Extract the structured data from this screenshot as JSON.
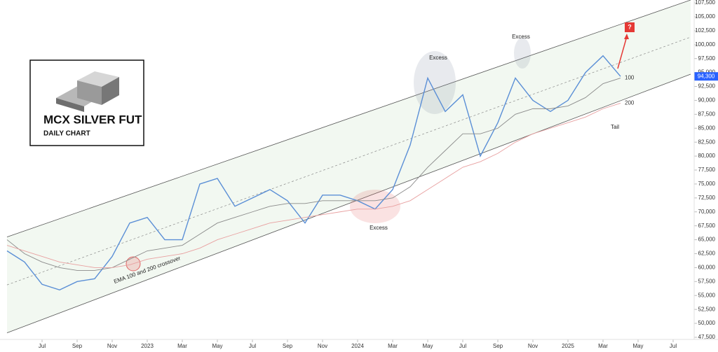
{
  "chart_data": {
    "type": "line",
    "title": "MCX SILVER FUT",
    "subtitle": "DAILY CHART",
    "x": [
      "2022-05",
      "2022-06",
      "2022-07",
      "2022-08",
      "2022-09",
      "2022-10",
      "2022-11",
      "2022-12",
      "2023-01",
      "2023-02",
      "2023-03",
      "2023-04",
      "2023-05",
      "2023-06",
      "2023-07",
      "2023-08",
      "2023-09",
      "2023-10",
      "2023-11",
      "2023-12",
      "2024-01",
      "2024-02",
      "2024-03",
      "2024-04",
      "2024-05",
      "2024-06",
      "2024-07",
      "2024-08",
      "2024-09",
      "2024-10",
      "2024-11",
      "2024-12",
      "2025-01",
      "2025-02",
      "2025-03",
      "2025-04"
    ],
    "series": [
      {
        "name": "MCX SILVER FUT",
        "color": "#5b8fd6",
        "values": [
          63000,
          61000,
          57000,
          56000,
          57500,
          58000,
          62000,
          68000,
          69000,
          65000,
          65000,
          75000,
          76000,
          71000,
          72500,
          74000,
          72000,
          68000,
          73000,
          73000,
          72000,
          70500,
          74000,
          82000,
          94000,
          88000,
          91000,
          80000,
          86000,
          94000,
          90000,
          88000,
          90000,
          95000,
          98000,
          94300
        ]
      },
      {
        "name": "100",
        "color": "#8a8a8a",
        "values": [
          65000,
          62500,
          61000,
          60000,
          59500,
          59500,
          60000,
          61500,
          63000,
          63500,
          64000,
          66000,
          68000,
          69000,
          70000,
          71000,
          71500,
          71500,
          72000,
          72000,
          72000,
          72000,
          72500,
          74500,
          78000,
          81000,
          84000,
          84000,
          85000,
          87500,
          88500,
          88500,
          89000,
          90500,
          93000,
          94000
        ]
      },
      {
        "name": "200",
        "color": "#e8a0a0",
        "values": [
          64000,
          63000,
          62000,
          61000,
          60500,
          60000,
          60000,
          60500,
          61500,
          62000,
          62500,
          63500,
          65000,
          66000,
          67000,
          68000,
          68500,
          69000,
          69500,
          70000,
          70500,
          70500,
          71000,
          72000,
          74000,
          76000,
          78000,
          79000,
          80500,
          82500,
          84000,
          85000,
          86000,
          87000,
          88500,
          89500
        ]
      }
    ],
    "channel": {
      "x": [
        "2022-05",
        "2025-08"
      ],
      "upper": [
        65500,
        108000
      ],
      "lower": [
        48300,
        94700
      ]
    },
    "last_price": {
      "value": 94300,
      "label": "94,300"
    },
    "annotations": [
      "Excess",
      "Excess",
      "Excess",
      "Tail",
      "EMA 100 and 200 crossover",
      "?"
    ],
    "xlim": [
      "2022-05",
      "2025-08"
    ],
    "xticks": [
      {
        "value": "2022-07",
        "label": "Jul"
      },
      {
        "value": "2022-09",
        "label": "Sep"
      },
      {
        "value": "2022-11",
        "label": "Nov"
      },
      {
        "value": "2023-01",
        "label": "2023"
      },
      {
        "value": "2023-03",
        "label": "Mar"
      },
      {
        "value": "2023-05",
        "label": "May"
      },
      {
        "value": "2023-07",
        "label": "Jul"
      },
      {
        "value": "2023-09",
        "label": "Sep"
      },
      {
        "value": "2023-11",
        "label": "Nov"
      },
      {
        "value": "2024-01",
        "label": "2024"
      },
      {
        "value": "2024-03",
        "label": "Mar"
      },
      {
        "value": "2024-05",
        "label": "May"
      },
      {
        "value": "2024-07",
        "label": "Jul"
      },
      {
        "value": "2024-09",
        "label": "Sep"
      },
      {
        "value": "2024-11",
        "label": "Nov"
      },
      {
        "value": "2025-01",
        "label": "2025"
      },
      {
        "value": "2025-03",
        "label": "Mar"
      },
      {
        "value": "2025-05",
        "label": "May"
      },
      {
        "value": "2025-07",
        "label": "Jul"
      }
    ],
    "ylim": [
      47500,
      107500
    ],
    "yticks": [
      {
        "value": 47500,
        "label": "47,500"
      },
      {
        "value": 50000,
        "label": "50,000"
      },
      {
        "value": 52500,
        "label": "52,500"
      },
      {
        "value": 55000,
        "label": "55,000"
      },
      {
        "value": 57500,
        "label": "57,500"
      },
      {
        "value": 60000,
        "label": "60,000"
      },
      {
        "value": 62500,
        "label": "62,500"
      },
      {
        "value": 65000,
        "label": "65,000"
      },
      {
        "value": 67500,
        "label": "67,500"
      },
      {
        "value": 70000,
        "label": "70,000"
      },
      {
        "value": 72500,
        "label": "72,500"
      },
      {
        "value": 75000,
        "label": "75,000"
      },
      {
        "value": 77500,
        "label": "77,500"
      },
      {
        "value": 80000,
        "label": "80,000"
      },
      {
        "value": 82500,
        "label": "82,500"
      },
      {
        "value": 85000,
        "label": "85,000"
      },
      {
        "value": 87500,
        "label": "87,500"
      },
      {
        "value": 90000,
        "label": "90,000"
      },
      {
        "value": 92500,
        "label": "92,500"
      },
      {
        "value": 95000,
        "label": "95,000"
      },
      {
        "value": 97500,
        "label": "97,500"
      },
      {
        "value": 100000,
        "label": "100,000"
      },
      {
        "value": 102500,
        "label": "102,500"
      },
      {
        "value": 105000,
        "label": "105,000"
      },
      {
        "value": 107500,
        "label": "107,500"
      }
    ],
    "grid": false
  }
}
